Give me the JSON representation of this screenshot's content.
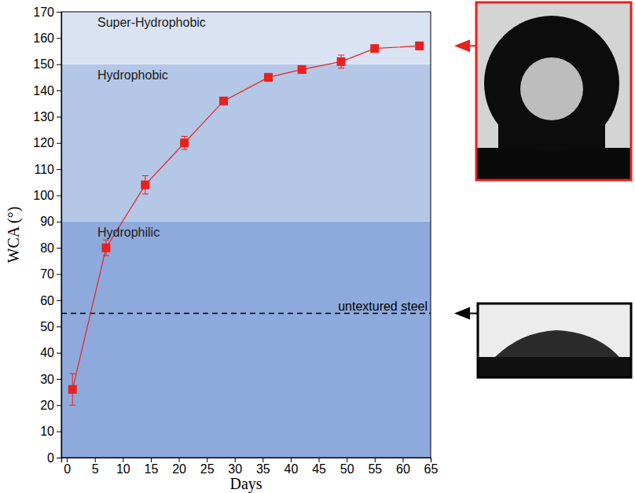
{
  "chart_data": {
    "type": "line",
    "x_label": "Days",
    "y_label": "WCA (°)",
    "x": [
      1,
      7,
      14,
      21,
      28,
      36,
      42,
      49,
      55,
      63
    ],
    "values": [
      26,
      80,
      104,
      120,
      136,
      145,
      148,
      151,
      156,
      157
    ],
    "errors": [
      6,
      3,
      3.5,
      2.5,
      1,
      1.5,
      1,
      2.5,
      1,
      1.5
    ],
    "color": "#e8211f",
    "marker": "square",
    "line_style": "solid",
    "xlim": [
      -1,
      65
    ],
    "xticks": [
      0,
      5,
      10,
      15,
      20,
      25,
      30,
      35,
      40,
      45,
      50,
      55,
      60,
      65
    ],
    "ylim": [
      0,
      170
    ],
    "yticks": [
      0,
      10,
      20,
      30,
      40,
      50,
      60,
      70,
      80,
      90,
      100,
      110,
      120,
      130,
      140,
      150,
      160,
      170
    ],
    "bands": [
      {
        "label": "Hydrophilic",
        "from": 0,
        "to": 90,
        "color": "#8eaadc"
      },
      {
        "label": "Hydrophobic",
        "from": 90,
        "to": 150,
        "color": "#b4c7e7"
      },
      {
        "label": "Super-Hydrophobic",
        "from": 150,
        "to": 170,
        "color": "#dae3f3"
      }
    ],
    "reference_line": {
      "label": "untextured steel",
      "value": 55,
      "line_style": "dashed"
    }
  }
}
